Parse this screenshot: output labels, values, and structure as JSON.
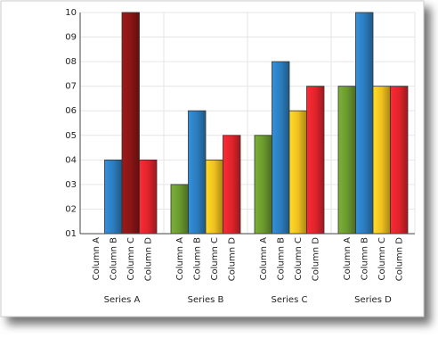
{
  "chart_data": {
    "type": "bar",
    "categories": [
      "Series A",
      "Series B",
      "Series C",
      "Series D"
    ],
    "series": [
      {
        "name": "Column A",
        "color": "#6b9a2f",
        "values": [
          1,
          3,
          5,
          7
        ]
      },
      {
        "name": "Column B",
        "color": "#2c7dbf",
        "values": [
          4,
          6,
          8,
          10
        ]
      },
      {
        "name": "Column C",
        "color": "#efc020",
        "colors": [
          "#8a1616",
          "#efc020",
          "#efc020",
          "#efc020"
        ],
        "values": [
          10,
          4,
          6,
          7
        ]
      },
      {
        "name": "Column D",
        "color": "#e0242c",
        "values": [
          4,
          5,
          7,
          7
        ]
      }
    ],
    "ylim": [
      1,
      10
    ],
    "yticks": [
      {
        "value": 1,
        "label": "01"
      },
      {
        "value": 2,
        "label": "02"
      },
      {
        "value": 3,
        "label": "03"
      },
      {
        "value": 4,
        "label": "04"
      },
      {
        "value": 5,
        "label": "05"
      },
      {
        "value": 6,
        "label": "06"
      },
      {
        "value": 7,
        "label": "07"
      },
      {
        "value": 8,
        "label": "08"
      },
      {
        "value": 9,
        "label": "09"
      },
      {
        "value": 10,
        "label": "10"
      }
    ],
    "grid": true
  }
}
